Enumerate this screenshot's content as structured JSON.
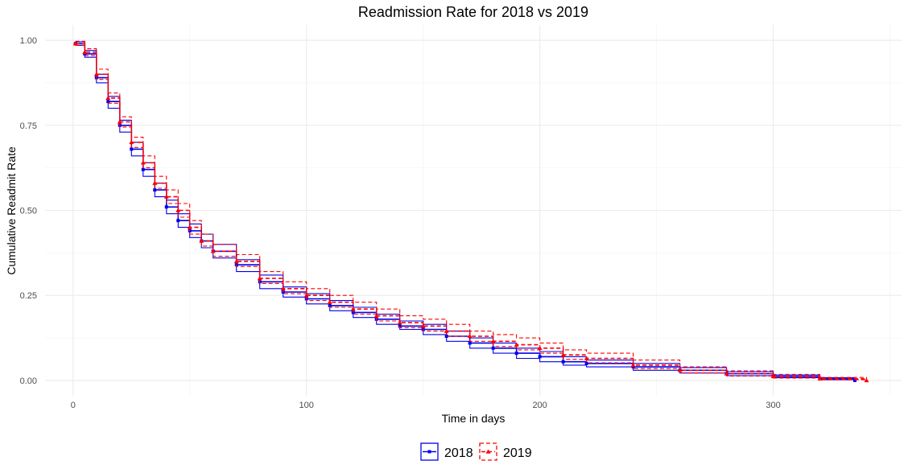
{
  "chart_data": {
    "type": "line",
    "title": "Readmission Rate for 2018 vs 2019",
    "xlabel": "Time in days",
    "ylabel": "Cumulative Readmit Rate",
    "xlim": [
      -12,
      355
    ],
    "ylim": [
      -0.045,
      1.045
    ],
    "x_ticks": [
      0,
      100,
      200,
      300
    ],
    "x_tick_labels": [
      "0",
      "100",
      "200",
      "300"
    ],
    "y_ticks": [
      0.0,
      0.25,
      0.5,
      0.75,
      1.0
    ],
    "y_tick_labels": [
      "0.00",
      "0.25",
      "0.50",
      "0.75",
      "1.00"
    ],
    "grid": true,
    "legend_position": "bottom",
    "series": [
      {
        "name": "2018",
        "color": "#0000ee",
        "line_style": "solid",
        "marker": "square",
        "x": [
          1,
          5,
          10,
          15,
          20,
          25,
          30,
          35,
          40,
          45,
          50,
          55,
          60,
          70,
          80,
          90,
          100,
          110,
          120,
          130,
          140,
          150,
          160,
          170,
          180,
          190,
          200,
          210,
          220,
          240,
          260,
          280,
          300,
          320,
          335
        ],
        "y": [
          0.99,
          0.96,
          0.89,
          0.82,
          0.75,
          0.68,
          0.62,
          0.56,
          0.51,
          0.47,
          0.44,
          0.41,
          0.38,
          0.34,
          0.29,
          0.26,
          0.24,
          0.22,
          0.2,
          0.18,
          0.16,
          0.15,
          0.13,
          0.11,
          0.095,
          0.08,
          0.07,
          0.055,
          0.05,
          0.04,
          0.03,
          0.02,
          0.012,
          0.005,
          0.0
        ],
        "ci_lower": [
          0.985,
          0.95,
          0.875,
          0.8,
          0.73,
          0.66,
          0.6,
          0.54,
          0.49,
          0.45,
          0.42,
          0.39,
          0.36,
          0.32,
          0.27,
          0.245,
          0.225,
          0.205,
          0.185,
          0.165,
          0.15,
          0.135,
          0.115,
          0.095,
          0.08,
          0.065,
          0.055,
          0.045,
          0.04,
          0.03,
          0.022,
          0.014,
          0.008,
          0.002,
          0.0
        ],
        "ci_upper": [
          0.995,
          0.97,
          0.9,
          0.835,
          0.765,
          0.7,
          0.64,
          0.58,
          0.53,
          0.49,
          0.46,
          0.43,
          0.4,
          0.355,
          0.31,
          0.275,
          0.255,
          0.235,
          0.215,
          0.195,
          0.175,
          0.165,
          0.145,
          0.125,
          0.11,
          0.095,
          0.085,
          0.07,
          0.06,
          0.05,
          0.038,
          0.026,
          0.016,
          0.008,
          0.003
        ]
      },
      {
        "name": "2019",
        "color": "#ff0000",
        "line_style": "dashed",
        "marker": "triangle",
        "x": [
          1,
          5,
          10,
          15,
          20,
          25,
          30,
          35,
          40,
          45,
          50,
          55,
          60,
          70,
          80,
          90,
          100,
          110,
          120,
          130,
          140,
          150,
          160,
          170,
          180,
          190,
          200,
          210,
          220,
          240,
          260,
          280,
          300,
          320,
          340
        ],
        "y": [
          0.99,
          0.965,
          0.9,
          0.83,
          0.76,
          0.7,
          0.64,
          0.58,
          0.54,
          0.5,
          0.45,
          0.41,
          0.38,
          0.35,
          0.3,
          0.27,
          0.25,
          0.23,
          0.21,
          0.19,
          0.17,
          0.16,
          0.145,
          0.13,
          0.115,
          0.105,
          0.095,
          0.075,
          0.065,
          0.045,
          0.03,
          0.02,
          0.012,
          0.005,
          0.0
        ],
        "ci_lower": [
          0.985,
          0.955,
          0.885,
          0.815,
          0.745,
          0.685,
          0.625,
          0.565,
          0.52,
          0.48,
          0.43,
          0.395,
          0.365,
          0.335,
          0.285,
          0.255,
          0.235,
          0.215,
          0.195,
          0.175,
          0.155,
          0.145,
          0.13,
          0.115,
          0.1,
          0.09,
          0.08,
          0.062,
          0.052,
          0.035,
          0.022,
          0.013,
          0.007,
          0.002,
          0.0
        ],
        "ci_upper": [
          0.997,
          0.975,
          0.915,
          0.845,
          0.775,
          0.715,
          0.66,
          0.6,
          0.56,
          0.52,
          0.47,
          0.43,
          0.4,
          0.37,
          0.32,
          0.29,
          0.27,
          0.25,
          0.23,
          0.21,
          0.19,
          0.18,
          0.165,
          0.145,
          0.135,
          0.125,
          0.11,
          0.09,
          0.08,
          0.06,
          0.04,
          0.028,
          0.018,
          0.009,
          0.003
        ]
      }
    ]
  }
}
